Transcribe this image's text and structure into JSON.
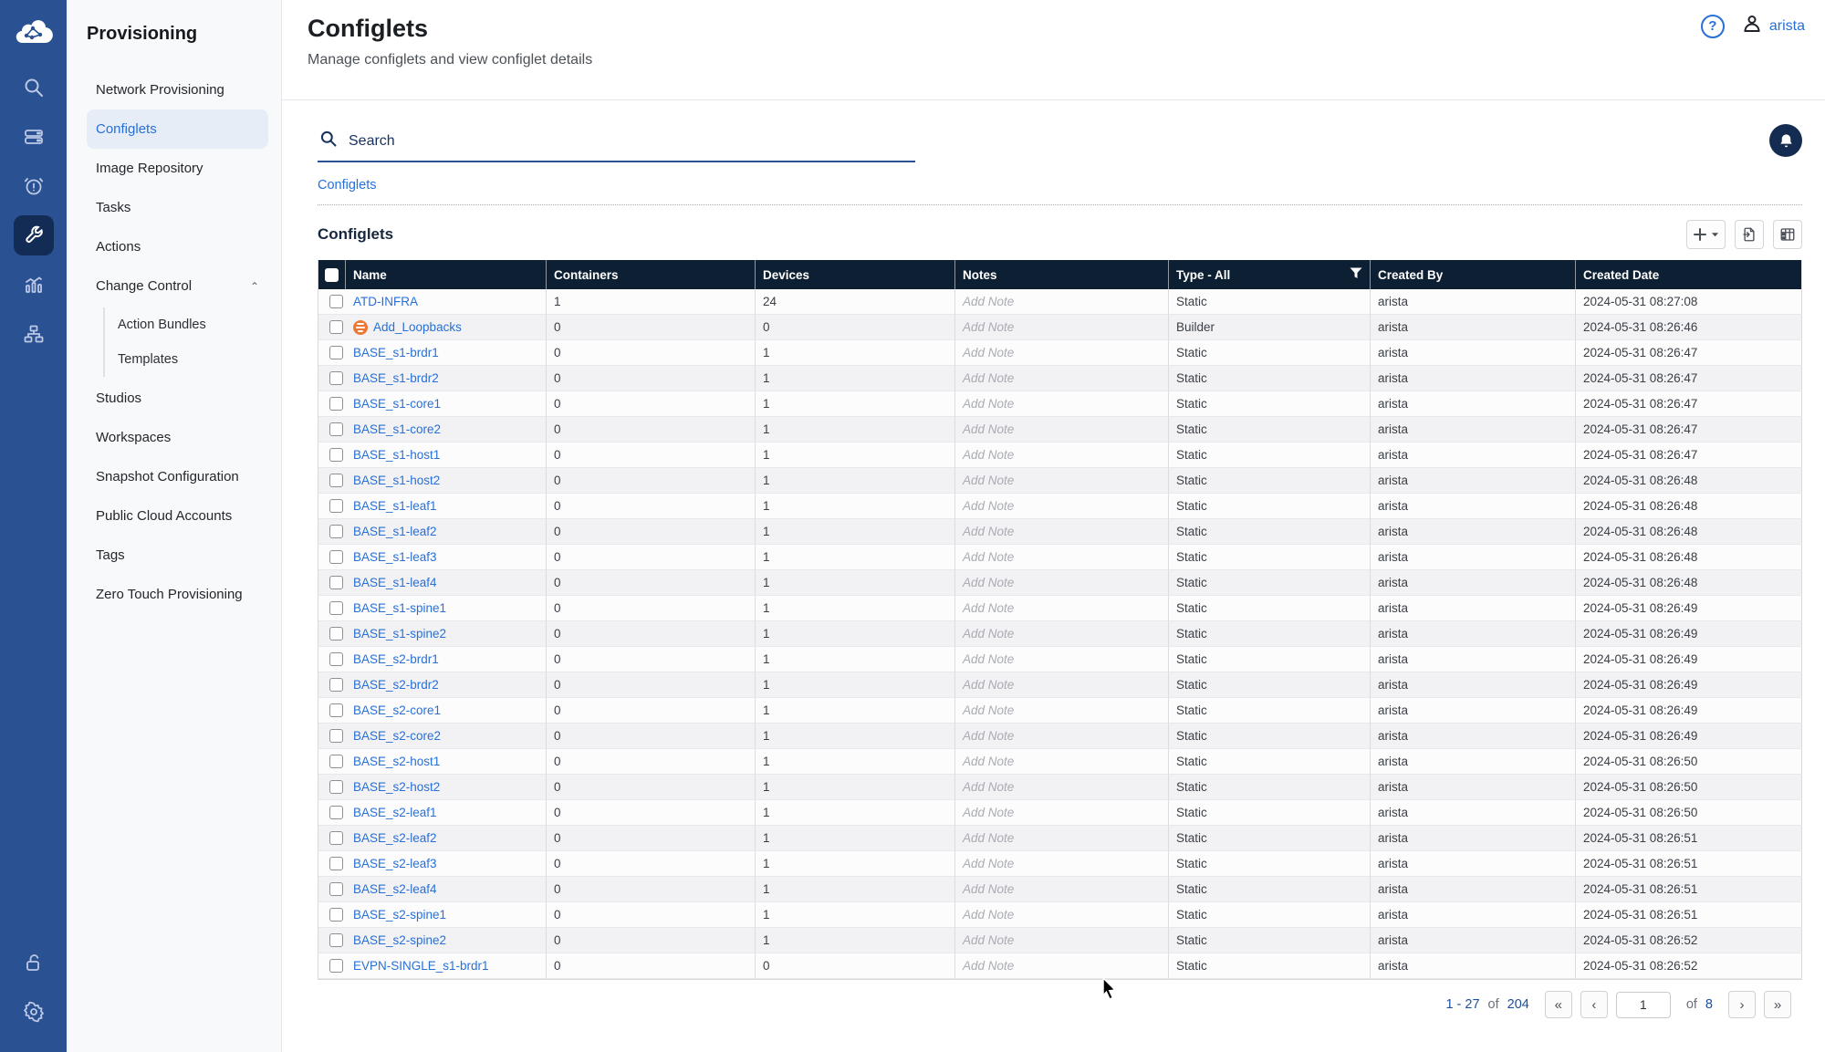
{
  "colors": {
    "rail_blue": "#2a5191",
    "rail_active": "#122c55",
    "link_blue": "#2770d8",
    "table_header_navy": "#0d1f33",
    "builder_orange": "#e87d2a",
    "accent_underline": "#2a5191"
  },
  "rail_icons": [
    "cloudvision-logo",
    "search-icon",
    "devices-icon",
    "events-icon",
    "provisioning-icon",
    "metrics-icon",
    "topology-icon",
    "lock-open-icon",
    "settings-icon"
  ],
  "sidebar": {
    "title": "Provisioning",
    "items": [
      {
        "label": "Network Provisioning"
      },
      {
        "label": "Configlets",
        "active": true
      },
      {
        "label": "Image Repository"
      },
      {
        "label": "Tasks"
      },
      {
        "label": "Actions"
      },
      {
        "label": "Change Control",
        "expanded": true,
        "children": [
          {
            "label": "Action Bundles"
          },
          {
            "label": "Templates"
          }
        ]
      },
      {
        "label": "Studios"
      },
      {
        "label": "Workspaces"
      },
      {
        "label": "Snapshot Configuration"
      },
      {
        "label": "Public Cloud Accounts"
      },
      {
        "label": "Tags"
      },
      {
        "label": "Zero Touch Provisioning"
      }
    ]
  },
  "header": {
    "title": "Configlets",
    "subtitle": "Manage configlets and view configlet details",
    "help_label": "?",
    "username": "arista"
  },
  "search": {
    "placeholder": "Search"
  },
  "breadcrumb": {
    "items": [
      {
        "label": "Configlets"
      }
    ]
  },
  "section": {
    "title": "Configlets"
  },
  "toolbar": {
    "add_label": "+",
    "caret": "▾"
  },
  "table": {
    "columns": [
      "Name",
      "Containers",
      "Devices",
      "Notes",
      "Type - All",
      "Created By",
      "Created Date"
    ],
    "note_placeholder": "Add Note",
    "rows": [
      {
        "name": "ATD-INFRA",
        "containers": "1",
        "devices": "24",
        "note": "Add Note",
        "type": "Static",
        "created_by": "arista",
        "created_date": "2024-05-31 08:27:08"
      },
      {
        "name": "Add_Loopbacks",
        "icon": "builder",
        "containers": "0",
        "devices": "0",
        "note": "Add Note",
        "type": "Builder",
        "created_by": "arista",
        "created_date": "2024-05-31 08:26:46"
      },
      {
        "name": "BASE_s1-brdr1",
        "containers": "0",
        "devices": "1",
        "note": "Add Note",
        "type": "Static",
        "created_by": "arista",
        "created_date": "2024-05-31 08:26:47"
      },
      {
        "name": "BASE_s1-brdr2",
        "containers": "0",
        "devices": "1",
        "note": "Add Note",
        "type": "Static",
        "created_by": "arista",
        "created_date": "2024-05-31 08:26:47"
      },
      {
        "name": "BASE_s1-core1",
        "containers": "0",
        "devices": "1",
        "note": "Add Note",
        "type": "Static",
        "created_by": "arista",
        "created_date": "2024-05-31 08:26:47"
      },
      {
        "name": "BASE_s1-core2",
        "containers": "0",
        "devices": "1",
        "note": "Add Note",
        "type": "Static",
        "created_by": "arista",
        "created_date": "2024-05-31 08:26:47"
      },
      {
        "name": "BASE_s1-host1",
        "containers": "0",
        "devices": "1",
        "note": "Add Note",
        "type": "Static",
        "created_by": "arista",
        "created_date": "2024-05-31 08:26:47"
      },
      {
        "name": "BASE_s1-host2",
        "containers": "0",
        "devices": "1",
        "note": "Add Note",
        "type": "Static",
        "created_by": "arista",
        "created_date": "2024-05-31 08:26:48"
      },
      {
        "name": "BASE_s1-leaf1",
        "containers": "0",
        "devices": "1",
        "note": "Add Note",
        "type": "Static",
        "created_by": "arista",
        "created_date": "2024-05-31 08:26:48"
      },
      {
        "name": "BASE_s1-leaf2",
        "containers": "0",
        "devices": "1",
        "note": "Add Note",
        "type": "Static",
        "created_by": "arista",
        "created_date": "2024-05-31 08:26:48"
      },
      {
        "name": "BASE_s1-leaf3",
        "containers": "0",
        "devices": "1",
        "note": "Add Note",
        "type": "Static",
        "created_by": "arista",
        "created_date": "2024-05-31 08:26:48"
      },
      {
        "name": "BASE_s1-leaf4",
        "containers": "0",
        "devices": "1",
        "note": "Add Note",
        "type": "Static",
        "created_by": "arista",
        "created_date": "2024-05-31 08:26:48"
      },
      {
        "name": "BASE_s1-spine1",
        "containers": "0",
        "devices": "1",
        "note": "Add Note",
        "type": "Static",
        "created_by": "arista",
        "created_date": "2024-05-31 08:26:49"
      },
      {
        "name": "BASE_s1-spine2",
        "containers": "0",
        "devices": "1",
        "note": "Add Note",
        "type": "Static",
        "created_by": "arista",
        "created_date": "2024-05-31 08:26:49"
      },
      {
        "name": "BASE_s2-brdr1",
        "containers": "0",
        "devices": "1",
        "note": "Add Note",
        "type": "Static",
        "created_by": "arista",
        "created_date": "2024-05-31 08:26:49"
      },
      {
        "name": "BASE_s2-brdr2",
        "containers": "0",
        "devices": "1",
        "note": "Add Note",
        "type": "Static",
        "created_by": "arista",
        "created_date": "2024-05-31 08:26:49"
      },
      {
        "name": "BASE_s2-core1",
        "containers": "0",
        "devices": "1",
        "note": "Add Note",
        "type": "Static",
        "created_by": "arista",
        "created_date": "2024-05-31 08:26:49"
      },
      {
        "name": "BASE_s2-core2",
        "containers": "0",
        "devices": "1",
        "note": "Add Note",
        "type": "Static",
        "created_by": "arista",
        "created_date": "2024-05-31 08:26:49"
      },
      {
        "name": "BASE_s2-host1",
        "containers": "0",
        "devices": "1",
        "note": "Add Note",
        "type": "Static",
        "created_by": "arista",
        "created_date": "2024-05-31 08:26:50"
      },
      {
        "name": "BASE_s2-host2",
        "containers": "0",
        "devices": "1",
        "note": "Add Note",
        "type": "Static",
        "created_by": "arista",
        "created_date": "2024-05-31 08:26:50"
      },
      {
        "name": "BASE_s2-leaf1",
        "containers": "0",
        "devices": "1",
        "note": "Add Note",
        "type": "Static",
        "created_by": "arista",
        "created_date": "2024-05-31 08:26:50"
      },
      {
        "name": "BASE_s2-leaf2",
        "containers": "0",
        "devices": "1",
        "note": "Add Note",
        "type": "Static",
        "created_by": "arista",
        "created_date": "2024-05-31 08:26:51"
      },
      {
        "name": "BASE_s2-leaf3",
        "containers": "0",
        "devices": "1",
        "note": "Add Note",
        "type": "Static",
        "created_by": "arista",
        "created_date": "2024-05-31 08:26:51"
      },
      {
        "name": "BASE_s2-leaf4",
        "containers": "0",
        "devices": "1",
        "note": "Add Note",
        "type": "Static",
        "created_by": "arista",
        "created_date": "2024-05-31 08:26:51"
      },
      {
        "name": "BASE_s2-spine1",
        "containers": "0",
        "devices": "1",
        "note": "Add Note",
        "type": "Static",
        "created_by": "arista",
        "created_date": "2024-05-31 08:26:51"
      },
      {
        "name": "BASE_s2-spine2",
        "containers": "0",
        "devices": "1",
        "note": "Add Note",
        "type": "Static",
        "created_by": "arista",
        "created_date": "2024-05-31 08:26:52"
      },
      {
        "name": "EVPN-SINGLE_s1-brdr1",
        "containers": "0",
        "devices": "0",
        "note": "Add Note",
        "type": "Static",
        "created_by": "arista",
        "created_date": "2024-05-31 08:26:52"
      }
    ]
  },
  "pagination": {
    "range": "1 - 27",
    "of_label": "of",
    "total": "204",
    "first": "«",
    "prev": "‹",
    "page_value": "1",
    "page_of_label": "of",
    "total_pages": "8",
    "next": "›",
    "last": "»"
  }
}
